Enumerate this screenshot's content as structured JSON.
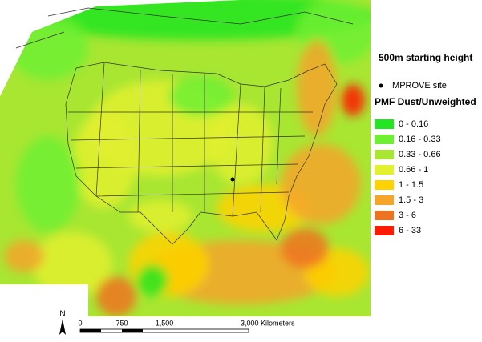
{
  "header": {
    "title": "500m starting height"
  },
  "marker_legend": {
    "label": "IMPROVE site"
  },
  "legend": {
    "title": "PMF Dust/Unweighted",
    "items": [
      {
        "label": "0 - 0.16",
        "color": "#22e622"
      },
      {
        "label": "0.16 - 0.33",
        "color": "#6ef032"
      },
      {
        "label": "0.33 - 0.66",
        "color": "#a8e632"
      },
      {
        "label": "0.66 - 1",
        "color": "#e2f02e"
      },
      {
        "label": "1 - 1.5",
        "color": "#ffd200"
      },
      {
        "label": "1.5 - 3",
        "color": "#f5a52a"
      },
      {
        "label": "3 - 6",
        "color": "#ee7320"
      },
      {
        "label": "6 - 33",
        "color": "#ff1a00"
      }
    ]
  },
  "scale_bar": {
    "labels": [
      "0",
      "750",
      "1,500",
      "3,000 Kilometers"
    ]
  },
  "north_arrow": {
    "label": "N"
  }
}
